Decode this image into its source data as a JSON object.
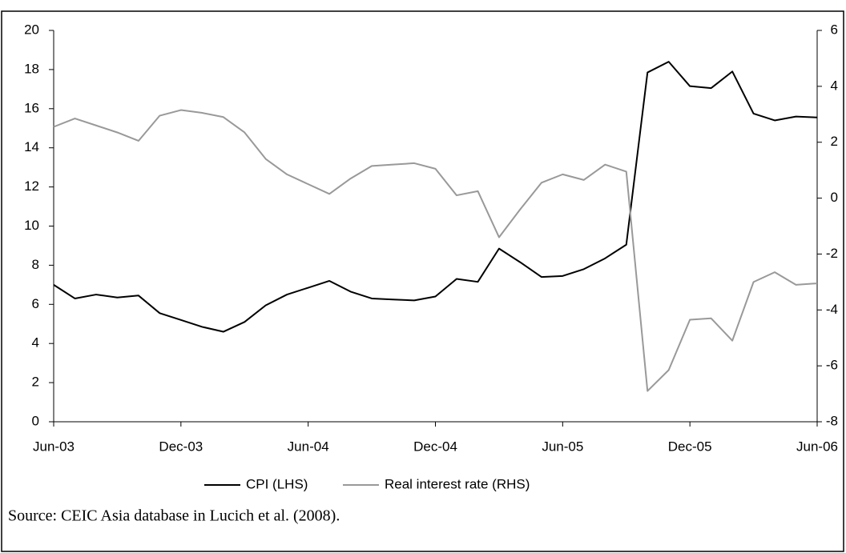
{
  "chart_data": {
    "type": "line",
    "categories": [
      "Jun-03",
      null,
      null,
      null,
      null,
      null,
      "Dec-03",
      null,
      null,
      null,
      null,
      null,
      "Jun-04",
      null,
      null,
      null,
      null,
      null,
      "Dec-04",
      null,
      null,
      null,
      null,
      null,
      "Jun-05",
      null,
      null,
      null,
      null,
      null,
      "Dec-05",
      null,
      null,
      null,
      null,
      null,
      "Jun-06"
    ],
    "series": [
      {
        "name": "CPI (LHS)",
        "color": "#000000",
        "axis": "y",
        "values": [
          7.0,
          6.3,
          6.5,
          6.35,
          6.45,
          5.55,
          5.2,
          4.85,
          4.6,
          5.1,
          5.95,
          6.5,
          6.85,
          7.2,
          6.65,
          6.3,
          6.25,
          6.2,
          6.4,
          7.3,
          7.15,
          8.85,
          8.15,
          7.4,
          7.45,
          7.8,
          8.35,
          9.05,
          17.85,
          18.4,
          17.15,
          17.05,
          17.9,
          15.75,
          15.4,
          15.6,
          15.55
        ]
      },
      {
        "name": "Real interest rate (RHS)",
        "color": "#999999",
        "axis": "y2",
        "values": [
          2.55,
          2.85,
          2.6,
          2.35,
          2.05,
          2.95,
          3.15,
          3.05,
          2.9,
          2.35,
          1.4,
          0.85,
          0.5,
          0.15,
          0.7,
          1.15,
          1.2,
          1.25,
          1.05,
          0.1,
          0.25,
          -1.4,
          -0.4,
          0.55,
          0.85,
          0.65,
          1.2,
          0.95,
          -6.9,
          -6.15,
          -4.35,
          -4.3,
          -5.1,
          -3.0,
          -2.65,
          -3.1,
          -3.05
        ]
      }
    ],
    "ylim": [
      0,
      20
    ],
    "yticks": [
      0,
      2,
      4,
      6,
      8,
      10,
      12,
      14,
      16,
      18,
      20
    ],
    "y2lim": [
      -8,
      6
    ],
    "y2ticks": [
      -8,
      -6,
      -4,
      -2,
      0,
      2,
      4,
      6
    ],
    "legend": "bottom",
    "source": "Source: CEIC Asia database in Lucich et al. (2008)."
  }
}
